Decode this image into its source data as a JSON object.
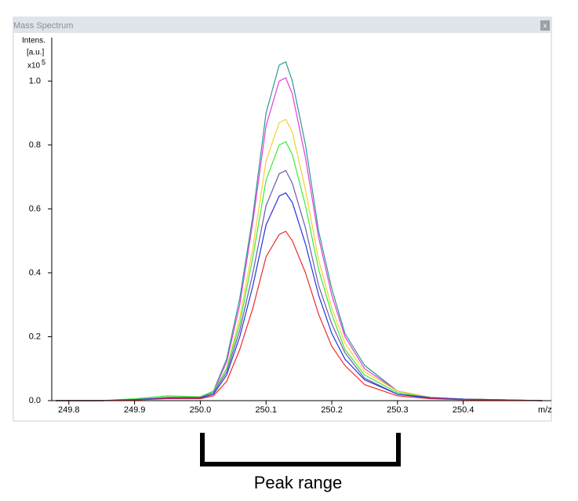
{
  "window": {
    "title": "Mass Spectrum",
    "close": "x"
  },
  "chart_data": {
    "type": "line",
    "y_label": [
      "Intens.",
      "[a.u.]"
    ],
    "y_scale": {
      "base": "x10",
      "exponent": "5"
    },
    "x_label": "m/z",
    "annotation": "Peak range",
    "x": [
      249.78,
      249.85,
      249.9,
      249.95,
      250.0,
      250.02,
      250.04,
      250.06,
      250.08,
      250.1,
      250.12,
      250.13,
      250.14,
      250.16,
      250.18,
      250.2,
      250.22,
      250.25,
      250.3,
      250.35,
      250.4,
      250.52
    ],
    "series": [
      {
        "color": "#2a9a8e",
        "values": [
          0,
          0,
          0.003,
          0.01,
          0.01,
          0.03,
          0.13,
          0.32,
          0.58,
          0.9,
          1.05,
          1.06,
          1.0,
          0.8,
          0.53,
          0.35,
          0.21,
          0.11,
          0.03,
          0.01,
          0.005,
          0
        ]
      },
      {
        "color": "#e43be0",
        "values": [
          0,
          0,
          0.003,
          0.01,
          0.01,
          0.03,
          0.12,
          0.3,
          0.56,
          0.86,
          1.0,
          1.01,
          0.96,
          0.76,
          0.51,
          0.33,
          0.2,
          0.1,
          0.03,
          0.01,
          0.005,
          0
        ]
      },
      {
        "color": "#f2d22a",
        "values": [
          0,
          0,
          0.003,
          0.01,
          0.01,
          0.03,
          0.1,
          0.26,
          0.48,
          0.75,
          0.87,
          0.88,
          0.84,
          0.66,
          0.44,
          0.29,
          0.18,
          0.09,
          0.03,
          0.01,
          0.005,
          0
        ]
      },
      {
        "color": "#3de83d",
        "values": [
          0,
          0,
          0.006,
          0.015,
          0.012,
          0.03,
          0.1,
          0.24,
          0.45,
          0.69,
          0.8,
          0.81,
          0.77,
          0.61,
          0.41,
          0.27,
          0.16,
          0.08,
          0.025,
          0.01,
          0.005,
          0
        ]
      },
      {
        "color": "#6a5aa8",
        "values": [
          0,
          0,
          0.003,
          0.01,
          0.01,
          0.025,
          0.09,
          0.22,
          0.4,
          0.61,
          0.71,
          0.72,
          0.68,
          0.54,
          0.36,
          0.24,
          0.15,
          0.07,
          0.02,
          0.01,
          0.005,
          0
        ]
      },
      {
        "color": "#2233dd",
        "values": [
          0,
          0,
          0.003,
          0.008,
          0.008,
          0.02,
          0.08,
          0.2,
          0.36,
          0.55,
          0.64,
          0.65,
          0.62,
          0.49,
          0.33,
          0.21,
          0.13,
          0.065,
          0.02,
          0.008,
          0.004,
          0
        ]
      },
      {
        "color": "#ee2a2a",
        "values": [
          0,
          0,
          0.002,
          0.006,
          0.006,
          0.015,
          0.06,
          0.16,
          0.29,
          0.45,
          0.52,
          0.53,
          0.5,
          0.4,
          0.27,
          0.17,
          0.11,
          0.05,
          0.015,
          0.006,
          0.003,
          0
        ]
      }
    ],
    "xlim": [
      249.774,
      250.534
    ],
    "ylim": [
      0,
      1.131
    ],
    "xticks": [
      249.8,
      249.9,
      {
        "value": 250.0,
        "label": "250.0"
      },
      250.1,
      250.2,
      250.3,
      250.4
    ],
    "yticks": [
      {
        "value": 0,
        "label": "0.0"
      },
      0.2,
      0.4,
      0.6,
      0.8,
      {
        "value": 1,
        "label": "1.0"
      }
    ]
  }
}
